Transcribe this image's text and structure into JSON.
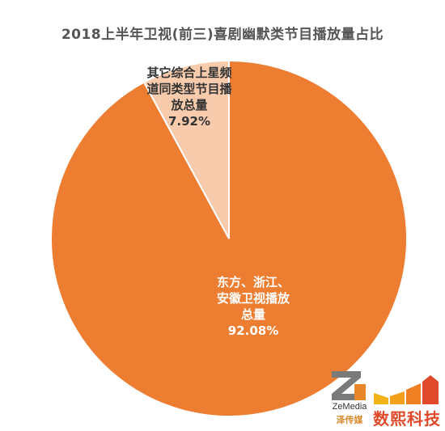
{
  "title": "2018上半年卫视(前三)喜剧幽默类节目播放量占比",
  "chart_data": {
    "type": "pie",
    "title": "2018上半年卫视(前三)喜剧幽默类节目播放量占比",
    "slices": [
      {
        "label": "东方、浙江、安徽卫视播放总量",
        "value": 92.08,
        "display": "92.08%",
        "color": "#ed7d31"
      },
      {
        "label": "其它综合上星频道同类型节目播放总量",
        "value": 7.92,
        "display": "7.92%",
        "color": "#f8cbad"
      }
    ]
  },
  "labels": {
    "other_lines": [
      "其它综合上星频",
      "道同类型节目播",
      "放总量",
      "7.92%"
    ],
    "main_lines": [
      "东方、浙江、",
      "安徽卫视播放",
      "总量",
      "92.08%"
    ]
  },
  "logos": {
    "zemedia_en": "ZeMedia",
    "zemedia_cn": "泽传媒",
    "shuxi": "数熙科技"
  }
}
